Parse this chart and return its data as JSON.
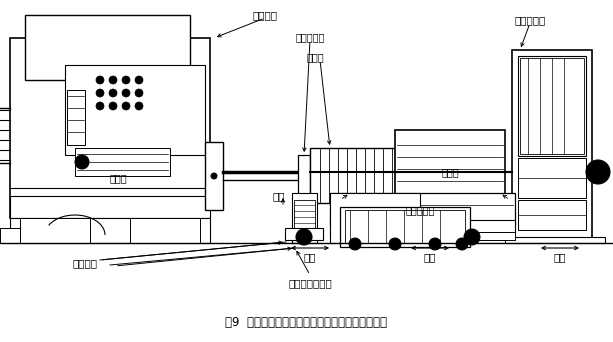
{
  "title": "図9  オーバーホールマシンによる回転子抜き作業",
  "bg_color": "#ffffff",
  "labels": {
    "chuck": "チャック",
    "rotor_shaft": "回転子片軸",
    "rotor": "回転子",
    "fixed_base": "固定台",
    "stator": "固定子",
    "stator_cart": "固定子台車",
    "center_push_cart": "心押し台車",
    "jack": "ジャッキ",
    "rise": "上昇",
    "run1": "走行",
    "run2": "走行",
    "run3": "走行",
    "rotor_cart": "回転子受け台車"
  },
  "figsize": [
    6.13,
    3.42
  ],
  "dpi": 100
}
